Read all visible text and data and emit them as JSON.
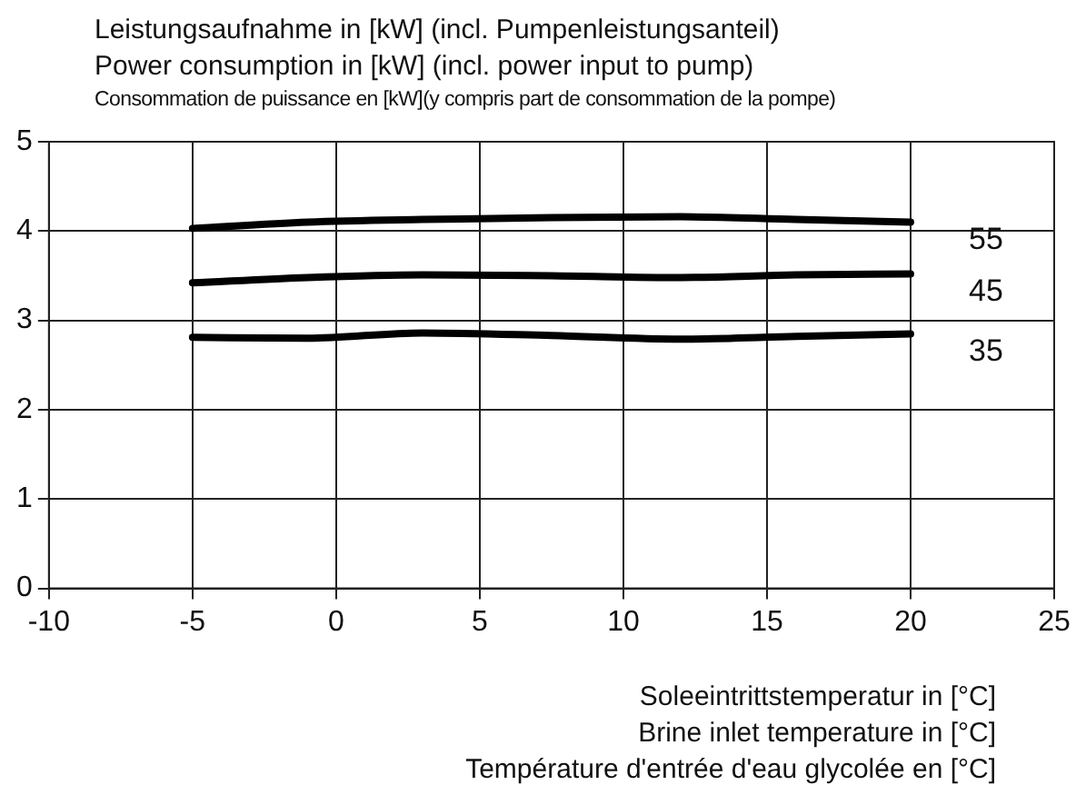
{
  "chart_data": {
    "type": "line",
    "title": "Leistungsaufnahme in [kW] (incl. Pumpenleistungsanteil)",
    "subtitle": "Power consumption in [kW] (incl. power input to pump)\nConsommation de puissance en [kW](y compris part de consommation de la pompe)",
    "xlabel": "Soleeintrittstemperatur in [°C]\nBrine inlet temperature in [°C]\nTempérature d'entrée d'eau glycolée en [°C]",
    "x": [
      -5,
      -1,
      3,
      7.5,
      12,
      16,
      20
    ],
    "series": [
      {
        "name": "55",
        "color": "#000000",
        "values": [
          4.03,
          4.1,
          4.13,
          4.15,
          4.16,
          4.13,
          4.1
        ]
      },
      {
        "name": "45",
        "color": "#000000",
        "values": [
          3.42,
          3.48,
          3.51,
          3.5,
          3.48,
          3.51,
          3.52
        ]
      },
      {
        "name": "35",
        "color": "#000000",
        "values": [
          2.81,
          2.8,
          2.86,
          2.83,
          2.79,
          2.82,
          2.85
        ]
      }
    ],
    "xlim": [
      -10,
      25
    ],
    "xticks": [
      -10,
      -5,
      0,
      5,
      10,
      15,
      20,
      25
    ],
    "ylim": [
      0,
      5
    ],
    "yticks": [
      0,
      1,
      2,
      3,
      4,
      5
    ],
    "grid": true,
    "legend": false,
    "marker": "none",
    "line_style": "solid"
  }
}
